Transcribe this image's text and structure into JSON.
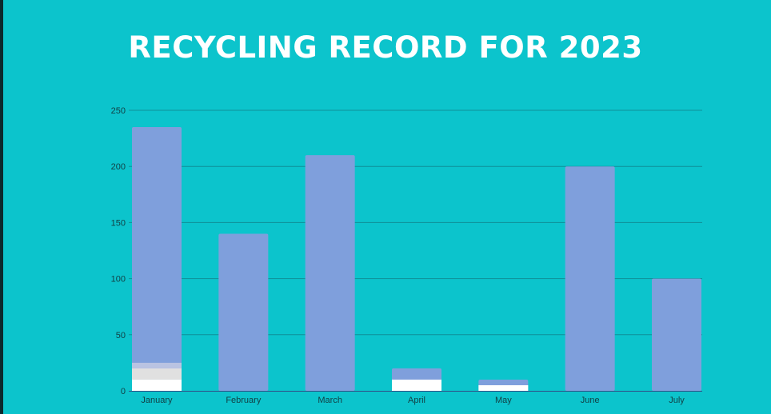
{
  "colors": {
    "background": "#0cc4cc",
    "bar_main": "#7f9fdc",
    "bar_light_gray": "#b9c3e2",
    "bar_gray": "#e0e0e0",
    "bar_white": "#ffffff",
    "gridline": "#0f8f98"
  },
  "chart_data": {
    "type": "bar",
    "title": "RECYCLING RECORD FOR 2023",
    "xlabel": "",
    "ylabel": "",
    "ylim": [
      0,
      250
    ],
    "yticks": [
      0,
      50,
      100,
      150,
      200,
      250
    ],
    "grid": true,
    "legend": "none",
    "categories": [
      "January",
      "February",
      "March",
      "April",
      "May",
      "June",
      "July"
    ],
    "values": [
      235,
      140,
      210,
      20,
      10,
      200,
      100
    ],
    "overlay_segments": [
      {
        "category": "January",
        "from": 0,
        "to": 10,
        "color": "#ffffff"
      },
      {
        "category": "January",
        "from": 10,
        "to": 20,
        "color": "#e0e0e0"
      },
      {
        "category": "January",
        "from": 20,
        "to": 25,
        "color": "#b9c3e2"
      },
      {
        "category": "April",
        "from": 0,
        "to": 10,
        "color": "#ffffff"
      },
      {
        "category": "May",
        "from": 0,
        "to": 5,
        "color": "#ffffff"
      }
    ]
  }
}
